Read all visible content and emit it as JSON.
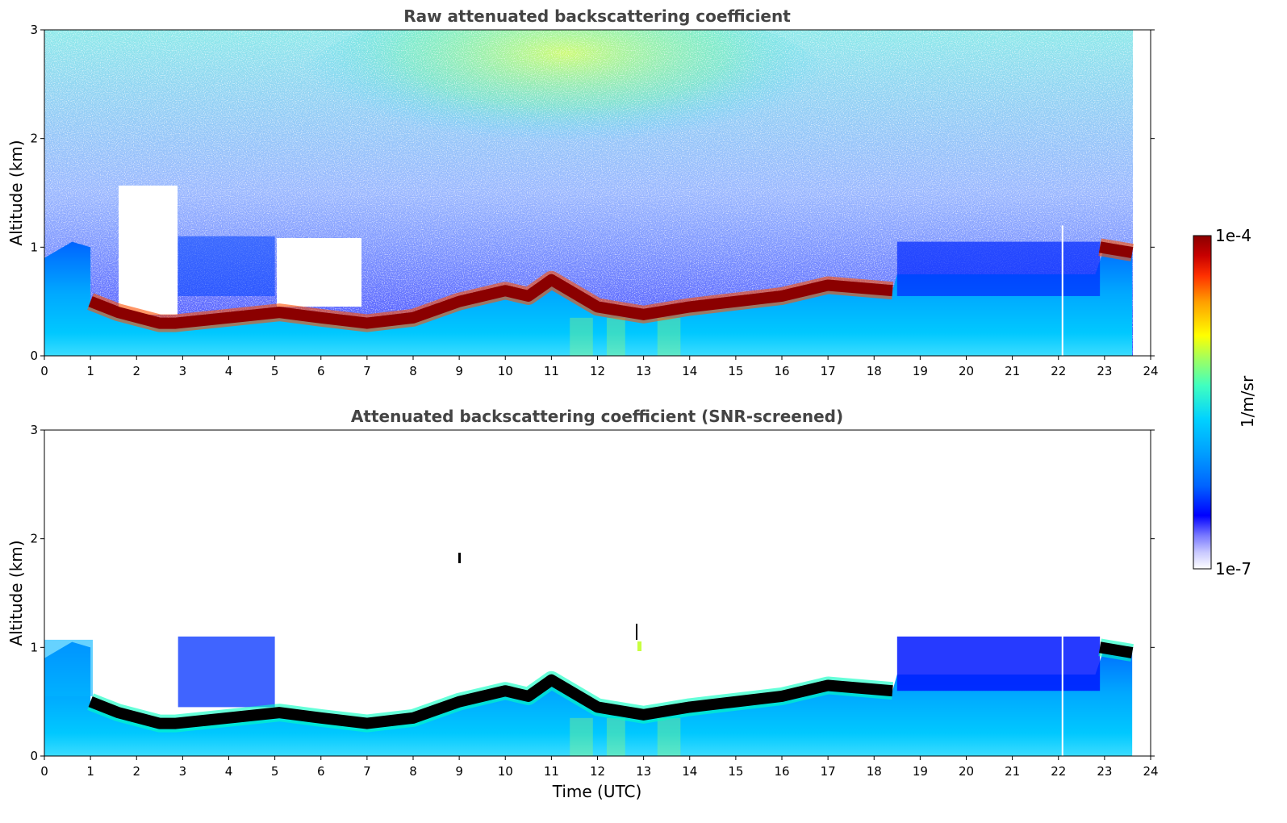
{
  "chart_data": [
    {
      "type": "heatmap",
      "title": "Raw attenuated backscattering coefficient",
      "xlabel": "",
      "ylabel": "Altitude (km)",
      "xlim": [
        0,
        24
      ],
      "ylim": [
        0,
        3
      ],
      "xticks": [
        0,
        1,
        2,
        3,
        4,
        5,
        6,
        7,
        8,
        9,
        10,
        11,
        12,
        13,
        14,
        15,
        16,
        17,
        18,
        19,
        20,
        21,
        22,
        23,
        24
      ],
      "yticks": [
        0,
        1,
        2,
        3
      ],
      "data_end_hour": 23.6,
      "cloud_base_km": [
        {
          "t": 1.0,
          "z": 0.5
        },
        {
          "t": 1.6,
          "z": 0.4
        },
        {
          "t": 2.5,
          "z": 0.3
        },
        {
          "t": 2.85,
          "z": 0.3
        },
        {
          "t": 5.1,
          "z": 0.4
        },
        {
          "t": 6.0,
          "z": 0.35
        },
        {
          "t": 7.0,
          "z": 0.3
        },
        {
          "t": 8.0,
          "z": 0.35
        },
        {
          "t": 9.0,
          "z": 0.5
        },
        {
          "t": 10.0,
          "z": 0.6
        },
        {
          "t": 10.5,
          "z": 0.55
        },
        {
          "t": 11.0,
          "z": 0.7
        },
        {
          "t": 12.0,
          "z": 0.45
        },
        {
          "t": 13.0,
          "z": 0.38
        },
        {
          "t": 14.0,
          "z": 0.45
        },
        {
          "t": 15.0,
          "z": 0.5
        },
        {
          "t": 16.0,
          "z": 0.55
        },
        {
          "t": 17.0,
          "z": 0.65
        },
        {
          "t": 18.4,
          "z": 0.6
        },
        {
          "t": 22.9,
          "z": 1.0
        },
        {
          "t": 23.6,
          "z": 0.95
        }
      ]
    },
    {
      "type": "heatmap",
      "title": "Attenuated backscattering coefficient (SNR-screened)",
      "xlabel": "Time (UTC)",
      "ylabel": "Altitude (km)",
      "xlim": [
        0,
        24
      ],
      "ylim": [
        0,
        3
      ],
      "xticks": [
        0,
        1,
        2,
        3,
        4,
        5,
        6,
        7,
        8,
        9,
        10,
        11,
        12,
        13,
        14,
        15,
        16,
        17,
        18,
        19,
        20,
        21,
        22,
        23,
        24
      ],
      "yticks": [
        0,
        1,
        2,
        3
      ],
      "data_end_hour": 23.6
    }
  ],
  "colorbar": {
    "label": "1/m/sr",
    "max_label": "1e-4",
    "min_label": "1e-7",
    "colors": [
      "#ffffff",
      "#c8c8ff",
      "#7878ff",
      "#0000ff",
      "#0064ff",
      "#00a0ff",
      "#00d2ff",
      "#40ffc0",
      "#a0ff60",
      "#ffff00",
      "#ffa000",
      "#ff3000",
      "#c80000",
      "#8b0000"
    ]
  }
}
